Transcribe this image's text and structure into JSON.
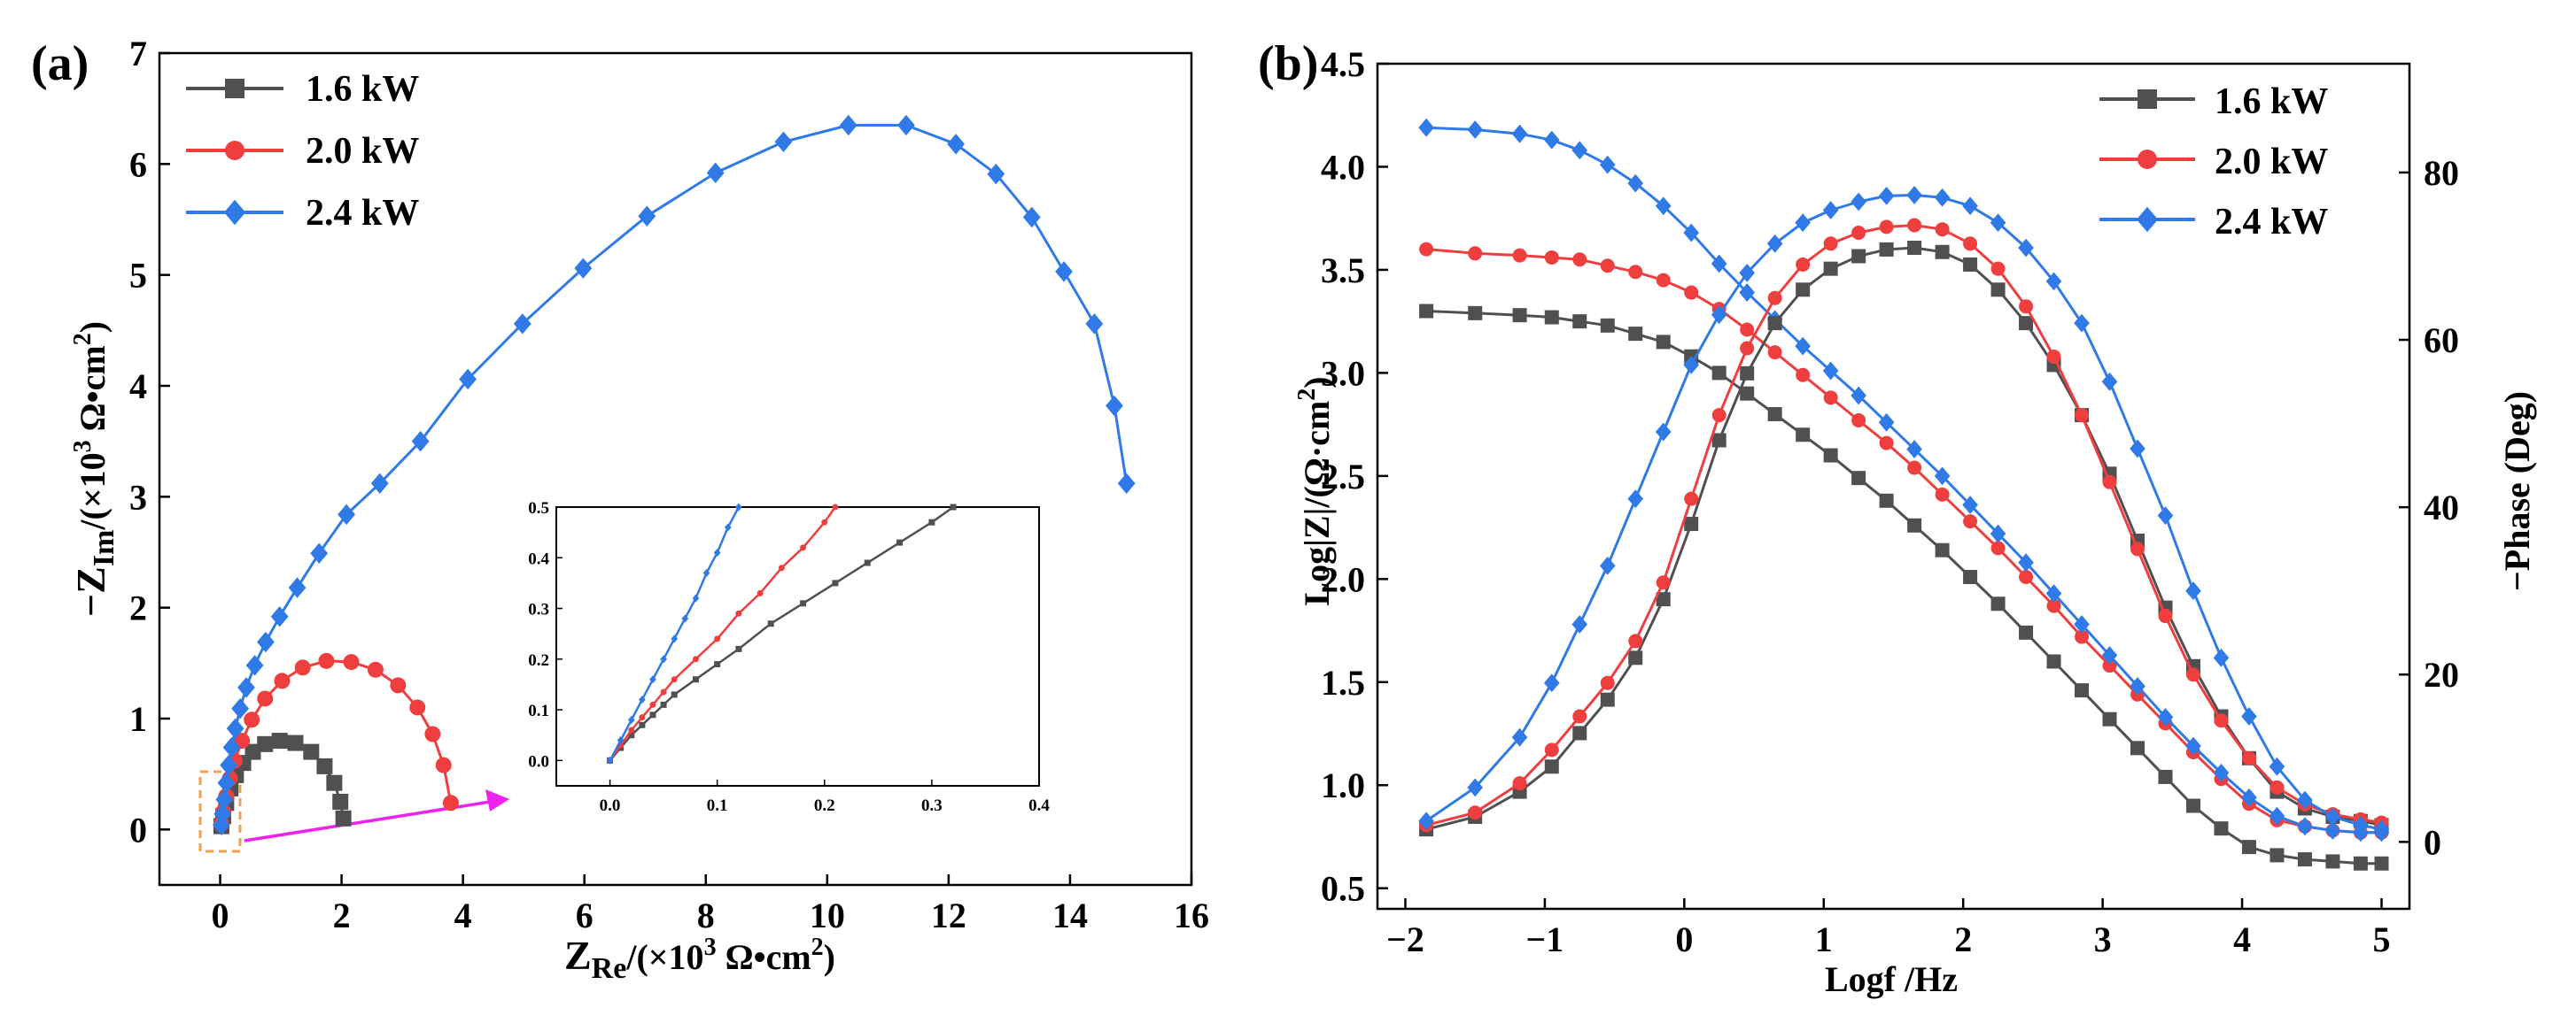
{
  "colors": {
    "s16": "#505050",
    "s20": "#ef3e3e",
    "s24": "#2f7ae6",
    "zoom_box": "#f0a050",
    "zoom_arrow": "#ee22ee"
  },
  "chart_data": [
    {
      "id": "a",
      "type": "scatter",
      "panel_label": "(a)",
      "title": "",
      "xlabel": {
        "main": "Z",
        "sub": "Re",
        "units": "/(×10",
        "sup": "3",
        "units2": " Ω•cm",
        "sup2": "2",
        "close": ")"
      },
      "ylabel": {
        "main": "−Z",
        "sub": "Im",
        "units": "/(×10",
        "sup": "3",
        "units2": " Ω•cm",
        "sup2": "2",
        "close": ")"
      },
      "xlim": [
        -1,
        16
      ],
      "ylim": [
        -0.5,
        7
      ],
      "xticks": [
        "0",
        "2",
        "4",
        "6",
        "8",
        "10",
        "12",
        "14",
        "16"
      ],
      "yticks": [
        "0",
        "1",
        "2",
        "3",
        "4",
        "5",
        "6",
        "7"
      ],
      "legend": [
        "1.6 kW",
        "2.0 kW",
        "2.4 kW"
      ],
      "legend_position": "top-left",
      "series": [
        {
          "name": "1.6 kW",
          "marker": "square",
          "x": [
            0.02,
            0.05,
            0.1,
            0.17,
            0.26,
            0.38,
            0.54,
            0.74,
            0.98,
            1.24,
            1.5,
            1.72,
            1.88,
            1.98,
            2.03
          ],
          "y": [
            0.03,
            0.12,
            0.24,
            0.37,
            0.49,
            0.6,
            0.7,
            0.77,
            0.8,
            0.78,
            0.7,
            0.57,
            0.42,
            0.25,
            0.1
          ]
        },
        {
          "name": "2.0 kW",
          "marker": "circle",
          "x": [
            0.02,
            0.05,
            0.1,
            0.16,
            0.24,
            0.36,
            0.52,
            0.74,
            1.02,
            1.36,
            1.75,
            2.16,
            2.56,
            2.93,
            3.25,
            3.5,
            3.68,
            3.8
          ],
          "y": [
            0.05,
            0.16,
            0.3,
            0.46,
            0.62,
            0.8,
            0.99,
            1.18,
            1.34,
            1.46,
            1.52,
            1.51,
            1.44,
            1.3,
            1.1,
            0.86,
            0.58,
            0.24
          ]
        },
        {
          "name": "2.4 kW",
          "marker": "diamond",
          "x": [
            0.02,
            0.04,
            0.07,
            0.1,
            0.14,
            0.19,
            0.25,
            0.33,
            0.43,
            0.57,
            0.75,
            0.98,
            1.27,
            1.63,
            2.08,
            2.63,
            3.3,
            4.08,
            4.98,
            5.98,
            7.03,
            8.16,
            9.28,
            10.35,
            11.3,
            12.12,
            12.78,
            13.37,
            13.9,
            14.4,
            14.73,
            14.93
          ],
          "y": [
            0.04,
            0.14,
            0.27,
            0.42,
            0.58,
            0.74,
            0.91,
            1.09,
            1.28,
            1.48,
            1.69,
            1.92,
            2.18,
            2.49,
            2.84,
            3.12,
            3.5,
            4.06,
            4.56,
            5.06,
            5.53,
            5.92,
            6.2,
            6.35,
            6.35,
            6.18,
            5.91,
            5.52,
            5.03,
            4.56,
            3.82,
            3.12
          ]
        }
      ]
    },
    {
      "id": "a-inset",
      "type": "line",
      "title": "",
      "xlim": [
        -0.05,
        0.4
      ],
      "ylim": [
        -0.05,
        0.5
      ],
      "xticks": [
        "0.0",
        "0.1",
        "0.2",
        "0.3",
        "0.4"
      ],
      "yticks": [
        "0.0",
        "0.1",
        "0.2",
        "0.3",
        "0.4",
        "0.5"
      ],
      "series": [
        {
          "name": "1.6 kW",
          "x": [
            0.0,
            0.01,
            0.02,
            0.03,
            0.04,
            0.05,
            0.06,
            0.08,
            0.1,
            0.12,
            0.15,
            0.18,
            0.21,
            0.24,
            0.27,
            0.3,
            0.32
          ],
          "y": [
            0.0,
            0.025,
            0.05,
            0.07,
            0.09,
            0.11,
            0.13,
            0.16,
            0.19,
            0.22,
            0.27,
            0.31,
            0.35,
            0.39,
            0.43,
            0.47,
            0.5
          ]
        },
        {
          "name": "2.0 kW",
          "x": [
            0.0,
            0.01,
            0.02,
            0.03,
            0.04,
            0.05,
            0.06,
            0.08,
            0.1,
            0.12,
            0.14,
            0.16,
            0.18,
            0.2,
            0.21
          ],
          "y": [
            0.0,
            0.03,
            0.06,
            0.085,
            0.11,
            0.135,
            0.16,
            0.2,
            0.24,
            0.29,
            0.33,
            0.38,
            0.42,
            0.47,
            0.5
          ]
        },
        {
          "name": "2.4 kW",
          "x": [
            0.0,
            0.01,
            0.02,
            0.03,
            0.04,
            0.05,
            0.06,
            0.07,
            0.08,
            0.09,
            0.1,
            0.11,
            0.12
          ],
          "y": [
            0.0,
            0.04,
            0.08,
            0.12,
            0.16,
            0.2,
            0.24,
            0.28,
            0.32,
            0.37,
            0.41,
            0.46,
            0.5
          ]
        }
      ]
    },
    {
      "id": "b",
      "type": "scatter",
      "panel_label": "(b)",
      "title": "",
      "xlabel": "Logf /Hz",
      "ylabel_left": {
        "main": "Log|Z|/(Ω·cm",
        "sup": "2",
        "close": ")"
      },
      "ylabel_right": "−Phase (Deg)",
      "xlim": [
        -2.2,
        5.2
      ],
      "ylim_left": [
        0.4,
        4.5
      ],
      "ylim_right": [
        -8,
        93
      ],
      "xticks": [
        "−2",
        "−1",
        "0",
        "1",
        "2",
        "3",
        "4",
        "5"
      ],
      "yticks_left": [
        "0.5",
        "1.0",
        "1.5",
        "2.0",
        "2.5",
        "3.0",
        "3.5",
        "4.0",
        "4.5"
      ],
      "yticks_right": [
        "0",
        "20",
        "40",
        "60",
        "80"
      ],
      "legend": [
        "1.6 kW",
        "2.0 kW",
        "2.4 kW"
      ],
      "legend_position": "top-right",
      "x": [
        -1.85,
        -1.5,
        -1.18,
        -0.95,
        -0.75,
        -0.55,
        -0.35,
        -0.15,
        0.05,
        0.25,
        0.45,
        0.65,
        0.85,
        1.05,
        1.25,
        1.45,
        1.65,
        1.85,
        2.05,
        2.25,
        2.45,
        2.65,
        2.85,
        3.05,
        3.25,
        3.45,
        3.65,
        3.85,
        4.05,
        4.25,
        4.45,
        4.65,
        4.85,
        5.0
      ],
      "series": [
        {
          "name": "1.6 kW",
          "marker": "square",
          "quantity": "Log|Z|",
          "y": [
            3.3,
            3.29,
            3.28,
            3.27,
            3.25,
            3.23,
            3.19,
            3.15,
            3.08,
            3.0,
            2.9,
            2.8,
            2.7,
            2.6,
            2.49,
            2.38,
            2.26,
            2.14,
            2.01,
            1.88,
            1.74,
            1.6,
            1.46,
            1.32,
            1.18,
            1.04,
            0.9,
            0.79,
            0.7,
            0.66,
            0.64,
            0.63,
            0.62,
            0.62
          ]
        },
        {
          "name": "2.0 kW",
          "marker": "circle",
          "quantity": "Log|Z|",
          "y": [
            3.6,
            3.58,
            3.57,
            3.56,
            3.55,
            3.52,
            3.49,
            3.45,
            3.39,
            3.31,
            3.21,
            3.1,
            2.99,
            2.88,
            2.77,
            2.66,
            2.54,
            2.41,
            2.28,
            2.15,
            2.01,
            1.87,
            1.72,
            1.58,
            1.44,
            1.3,
            1.16,
            1.03,
            0.91,
            0.83,
            0.8,
            0.78,
            0.77,
            0.77
          ]
        },
        {
          "name": "2.4 kW",
          "marker": "diamond",
          "quantity": "Log|Z|",
          "y": [
            4.19,
            4.18,
            4.16,
            4.13,
            4.08,
            4.01,
            3.92,
            3.81,
            3.68,
            3.53,
            3.39,
            3.26,
            3.13,
            3.01,
            2.89,
            2.76,
            2.63,
            2.5,
            2.36,
            2.22,
            2.08,
            1.93,
            1.78,
            1.63,
            1.48,
            1.33,
            1.19,
            1.06,
            0.94,
            0.85,
            0.8,
            0.78,
            0.77,
            0.77
          ]
        },
        {
          "name": "1.6 kW",
          "marker": "square",
          "quantity": "−Phase",
          "y": [
            1.5,
            3,
            6,
            9,
            13,
            17,
            22,
            29,
            38,
            48,
            56,
            62,
            66,
            68.5,
            70,
            70.8,
            71,
            70.5,
            69,
            66,
            62,
            57,
            51,
            44,
            36,
            28,
            21,
            15,
            10,
            6,
            4,
            3,
            2.5,
            2
          ]
        },
        {
          "name": "2.0 kW",
          "marker": "circle",
          "quantity": "−Phase",
          "y": [
            2,
            3.5,
            7,
            11,
            15,
            19,
            24,
            31,
            41,
            51,
            59,
            65,
            69,
            71.5,
            72.8,
            73.5,
            73.7,
            73.2,
            71.5,
            68.5,
            64,
            58,
            51,
            43,
            35,
            27,
            20,
            14.5,
            10,
            6.5,
            4.5,
            3.3,
            2.7,
            2.3
          ]
        },
        {
          "name": "2.4 kW",
          "marker": "diamond",
          "quantity": "−Phase",
          "y": [
            2.5,
            6.5,
            12.5,
            19,
            26,
            33,
            41,
            49,
            57,
            63,
            68,
            71.5,
            74,
            75.5,
            76.5,
            77.2,
            77.3,
            77,
            76,
            74,
            71,
            67,
            62,
            55,
            47,
            39,
            30,
            22,
            15,
            9,
            5,
            3,
            2,
            1.5
          ]
        }
      ]
    }
  ]
}
